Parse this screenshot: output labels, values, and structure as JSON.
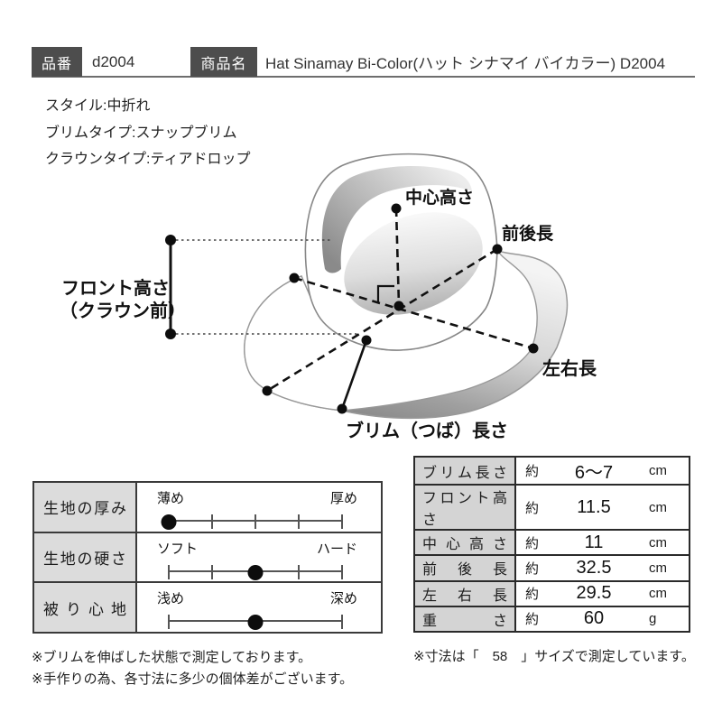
{
  "header": {
    "item_no_label": "品番",
    "item_no": "d2004",
    "product_name_label": "商品名",
    "product_name": "Hat Sinamay Bi-Color(ハット シナマイ バイカラー) D2004"
  },
  "specs": {
    "style": "スタイル:中折れ",
    "brim_type": "ブリムタイプ:スナップブリム",
    "crown_type": "クラウンタイプ:ティアドロップ"
  },
  "diagram": {
    "labels": {
      "center_height": "中心高さ",
      "front_back_length": "前後長",
      "front_height_line1": "フロント高さ",
      "front_height_line2": "（クラウン前）",
      "left_right_length": "左右長",
      "brim_length": "ブリム（つば）長さ"
    }
  },
  "fabric_table": {
    "rows": [
      {
        "label": "生地の厚み",
        "left": "薄め",
        "right": "厚め",
        "tick_positions": [
          0,
          1,
          2,
          3,
          4
        ],
        "dot_index": 0
      },
      {
        "label": "生地の硬さ",
        "left": "ソフト",
        "right": "ハード",
        "tick_positions": [
          0,
          1,
          2,
          3,
          4
        ],
        "dot_index": 2
      },
      {
        "label": "被り心地",
        "left": "浅め",
        "right": "深め",
        "tick_positions": [
          0,
          4
        ],
        "dot_index": 2
      }
    ]
  },
  "size_table": {
    "rows": [
      {
        "label": "ブリム長さ",
        "approx": "約",
        "value": "6～7",
        "unit": "cm"
      },
      {
        "label": "フロント高さ",
        "approx": "約",
        "value": "11.5",
        "unit": "cm"
      },
      {
        "label": "中心高さ",
        "approx": "約",
        "value": "11",
        "unit": "cm"
      },
      {
        "label": "前後長",
        "approx": "約",
        "value": "32.5",
        "unit": "cm"
      },
      {
        "label": "左右長",
        "approx": "約",
        "value": "29.5",
        "unit": "cm"
      },
      {
        "label": "重さ",
        "approx": "約",
        "value": "60",
        "unit": "g"
      }
    ]
  },
  "notes": {
    "note1": "※ブリムを伸ばした状態で測定しております。",
    "note2": "※手作りの為、各寸法に多少の個体差がございます。",
    "note3": "※寸法は「　58　」サイズで測定しています。"
  },
  "colors": {
    "badge_bg": "#4d4d4d",
    "fabric_label_cell_bg": "#dcdcdc",
    "size_label_cell_bg": "#d4d4d4",
    "line": "#111111"
  }
}
